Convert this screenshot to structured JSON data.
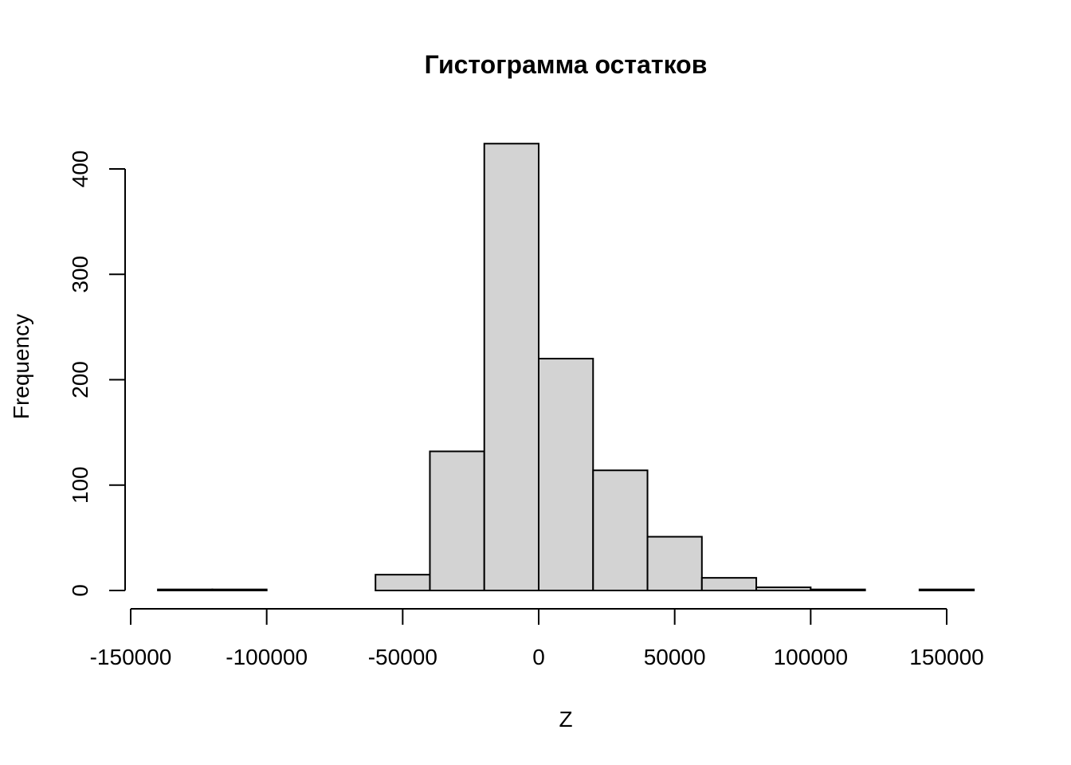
{
  "chart_data": {
    "type": "bar",
    "title": "Гистограмма остатков",
    "xlabel": "Z",
    "ylabel": "Frequency",
    "bin_edges": [
      -140000,
      -120000,
      -100000,
      -80000,
      -60000,
      -40000,
      -20000,
      0,
      20000,
      40000,
      60000,
      80000,
      100000,
      120000,
      140000,
      160000
    ],
    "values": [
      1,
      1,
      0,
      0,
      15,
      132,
      424,
      220,
      114,
      51,
      12,
      3,
      1,
      0,
      1
    ],
    "xlim": [
      -150000,
      160000
    ],
    "ylim": [
      0,
      424
    ],
    "x_ticks": [
      -150000,
      -100000,
      -50000,
      0,
      50000,
      100000,
      150000
    ],
    "x_tick_labels": [
      "-150000",
      "-100000",
      "-50000",
      "0",
      "50000",
      "100000",
      "150000"
    ],
    "y_ticks": [
      0,
      100,
      200,
      300,
      400
    ],
    "y_tick_labels": [
      "0",
      "100",
      "200",
      "300",
      "400"
    ],
    "bar_fill": "#d3d3d3",
    "bar_stroke": "#000000",
    "grid": false,
    "legend": "none"
  }
}
